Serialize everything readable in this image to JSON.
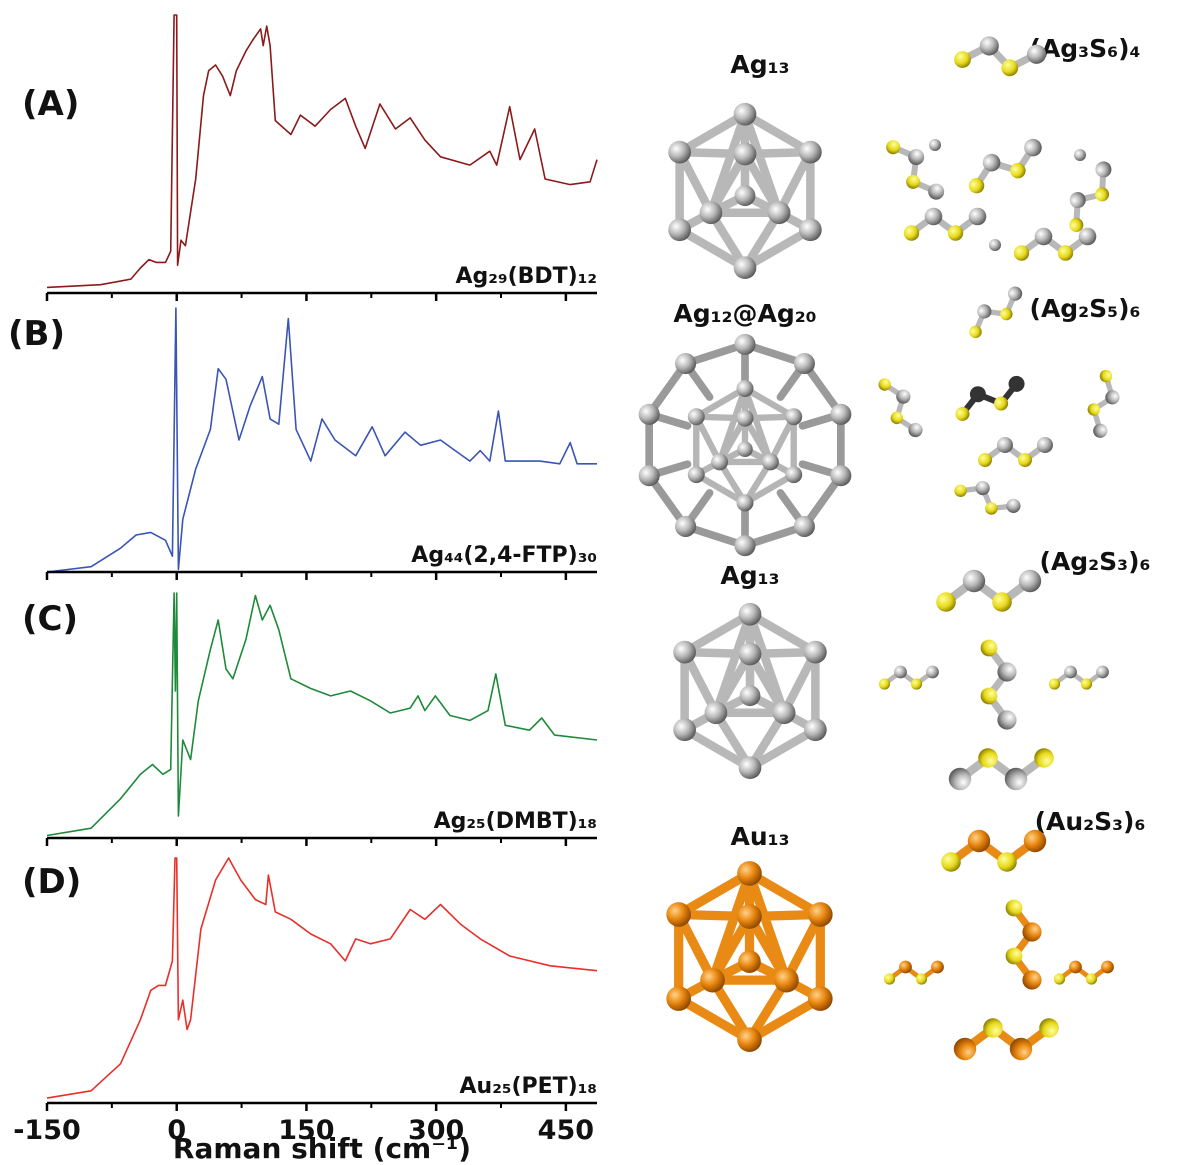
{
  "chart_data": [
    {
      "type": "line",
      "panel_label": "(A)",
      "label": "Ag₂₉(BDT)₁₂",
      "color": "#8b1a1a",
      "xlim": [
        -150,
        486
      ],
      "ylim": [
        0,
        100
      ],
      "xticks": [
        -150,
        0,
        150,
        300,
        450
      ],
      "xminorticks": [
        -75,
        75,
        225,
        375
      ],
      "tick_labels": false,
      "x": [
        -150,
        -88,
        -53,
        -42,
        -32,
        -24,
        -13,
        -7,
        -3,
        0,
        1,
        5,
        10,
        22,
        31,
        37,
        45,
        53,
        62,
        69,
        80,
        88,
        97,
        100,
        104,
        108,
        114,
        132,
        143,
        160,
        178,
        195,
        207,
        218,
        235,
        253,
        270,
        287,
        305,
        339,
        362,
        370,
        385,
        397,
        414,
        426,
        455,
        478,
        486
      ],
      "values": [
        2,
        3,
        5,
        9,
        12,
        11,
        11,
        15,
        100,
        100,
        10,
        19,
        17,
        41,
        71,
        80,
        82,
        78,
        71,
        80,
        87,
        91,
        95,
        89,
        96,
        89,
        62,
        57,
        64,
        60,
        66,
        70,
        60,
        52,
        68,
        59,
        63,
        55,
        49,
        46,
        51,
        46,
        67,
        48,
        59,
        41,
        39,
        40,
        48
      ]
    },
    {
      "type": "line",
      "panel_label": "(B)",
      "label": "Ag₄₄(2,4-FTP)₃₀",
      "color": "#3a55b4",
      "xlim": [
        -150,
        486
      ],
      "ylim": [
        0,
        100
      ],
      "xticks": [
        -150,
        0,
        150,
        300,
        450
      ],
      "xminorticks": [
        -75,
        75,
        225,
        375
      ],
      "tick_labels": false,
      "x": [
        -150,
        -99,
        -65,
        -47,
        -30,
        -13,
        -5,
        -1,
        2,
        7,
        22,
        39,
        48,
        57,
        72,
        85,
        99,
        108,
        118,
        129,
        138,
        155,
        168,
        183,
        207,
        226,
        241,
        264,
        282,
        305,
        322,
        339,
        351,
        362,
        372,
        380,
        420,
        443,
        455,
        463,
        486
      ],
      "values": [
        0,
        2,
        9,
        14,
        15,
        12,
        6,
        100,
        1,
        20,
        39,
        54,
        77,
        73,
        50,
        63,
        74,
        58,
        56,
        96,
        54,
        42,
        58,
        50,
        44,
        55,
        44,
        53,
        48,
        50,
        46,
        42,
        46,
        42,
        61,
        42,
        42,
        41,
        49,
        41,
        41
      ]
    },
    {
      "type": "line",
      "panel_label": "(C)",
      "label": "Ag₂₅(DMBT)₁₈",
      "color": "#1e8a3a",
      "xlim": [
        -150,
        486
      ],
      "ylim": [
        0,
        100
      ],
      "xticks": [
        -150,
        0,
        150,
        300,
        450
      ],
      "xminorticks": [
        -75,
        75,
        225,
        375
      ],
      "tick_labels": false,
      "x": [
        -150,
        -99,
        -65,
        -42,
        -28,
        -16,
        -7,
        -3,
        -1.5,
        0,
        2,
        7,
        16,
        25,
        39,
        48,
        57,
        65,
        80,
        91,
        99,
        108,
        118,
        132,
        155,
        178,
        201,
        224,
        247,
        270,
        279,
        287,
        299,
        316,
        339,
        360,
        369,
        380,
        408,
        422,
        437,
        486
      ],
      "values": [
        1,
        4,
        16,
        26,
        30,
        26,
        28,
        100,
        60,
        100,
        9,
        40,
        32,
        56,
        77,
        89,
        69,
        65,
        81,
        99,
        89,
        95,
        85,
        65,
        61,
        58,
        60,
        56,
        51,
        53,
        58,
        52,
        58,
        50,
        48,
        52,
        67,
        46,
        44,
        49,
        42,
        40
      ]
    },
    {
      "type": "line",
      "panel_label": "(D)",
      "label": "Au₂₅(PET)₁₈",
      "color": "#e8302a",
      "xlim": [
        -150,
        486
      ],
      "ylim": [
        0,
        100
      ],
      "xticks": [
        -150,
        0,
        150,
        300,
        450
      ],
      "xminorticks": [
        -75,
        75,
        225,
        375
      ],
      "tick_labels": true,
      "xlabel": "Raman shift (cm⁻¹)",
      "x": [
        -150,
        -99,
        -65,
        -42,
        -30,
        -21,
        -13,
        -5,
        -2,
        0,
        2,
        7,
        12,
        16,
        28,
        45,
        60,
        74,
        91,
        103,
        106,
        114,
        132,
        155,
        178,
        195,
        207,
        224,
        247,
        270,
        287,
        305,
        328,
        351,
        385,
        432,
        486
      ],
      "values": [
        2,
        5,
        16,
        34,
        46,
        48,
        48,
        58,
        100,
        100,
        34,
        42,
        30,
        34,
        71,
        91,
        100,
        91,
        83,
        81,
        93,
        78,
        75,
        69,
        65,
        58,
        67,
        65,
        67,
        79,
        75,
        81,
        73,
        67,
        60,
        56,
        54
      ]
    }
  ],
  "structures": [
    {
      "core": "Ag₁₃",
      "shell": "(Ag₃S₆)₄"
    },
    {
      "core": "Ag₁₂@Ag₂₀",
      "shell": "(Ag₂S₅)₆"
    },
    {
      "core": "Ag₁₃",
      "shell": "(Ag₂S₃)₆"
    },
    {
      "core": "Au₁₃",
      "shell": "(Au₂S₃)₆"
    }
  ]
}
